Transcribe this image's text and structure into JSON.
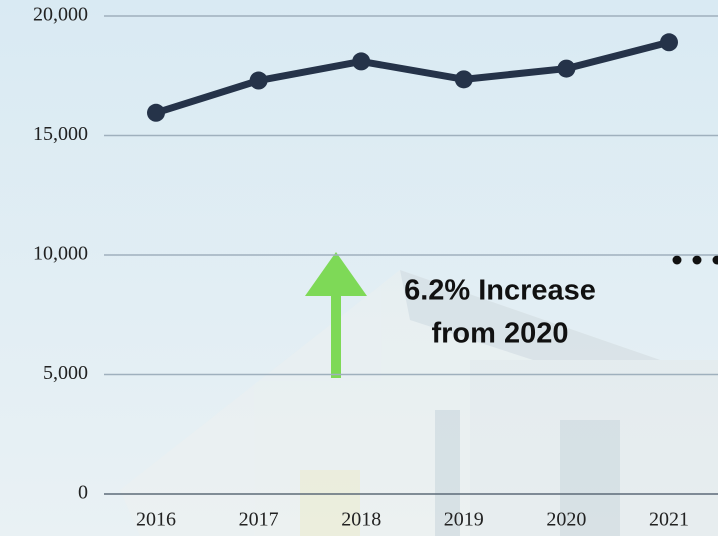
{
  "chart_data": {
    "type": "line",
    "categories": [
      "2016",
      "2017",
      "2018",
      "2019",
      "2020",
      "2021"
    ],
    "series": [
      {
        "name": null,
        "color": "#253349",
        "values": [
          15950,
          17300,
          18100,
          17350,
          17800,
          18900
        ]
      }
    ],
    "ylim": [
      0,
      20000
    ],
    "yticks": [
      0,
      {
        "value": 5000,
        "label": "5,000"
      },
      {
        "value": 10000,
        "label": "10,000"
      },
      {
        "value": 15000,
        "label": "15,000"
      },
      {
        "value": 20000,
        "label": "20,000"
      }
    ],
    "grid": true,
    "annotation": [
      "6.2% Increase",
      "from 2020"
    ]
  }
}
